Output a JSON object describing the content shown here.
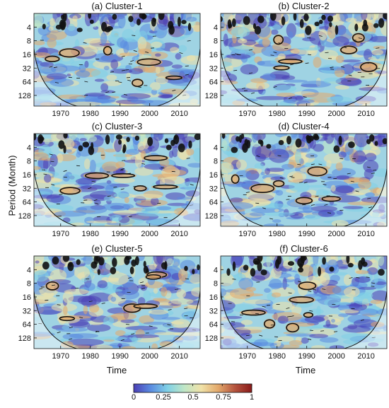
{
  "chart_data": [
    {
      "type": "heatmap",
      "title": "(a) Cluster-1",
      "ylabel": "",
      "xlabel": "",
      "x_ticks": [
        "1970",
        "1980",
        "1990",
        "2000",
        "2010"
      ],
      "y_ticks": [
        "4",
        "8",
        "16",
        "32",
        "64",
        "128"
      ],
      "x_range": [
        1961,
        2017
      ],
      "y_scale": "log2",
      "y_range": [
        2,
        220
      ]
    },
    {
      "type": "heatmap",
      "title": "(b) Cluster-2",
      "ylabel": "",
      "xlabel": "",
      "x_ticks": [
        "1970",
        "1980",
        "1990",
        "2000",
        "2010"
      ],
      "y_ticks": [
        "4",
        "8",
        "16",
        "32",
        "64",
        "128"
      ],
      "x_range": [
        1961,
        2017
      ],
      "y_scale": "log2",
      "y_range": [
        2,
        220
      ]
    },
    {
      "type": "heatmap",
      "title": "(c) Cluster-3",
      "ylabel": "Period (Month)",
      "xlabel": "",
      "x_ticks": [
        "1970",
        "1980",
        "1990",
        "2000",
        "2010"
      ],
      "y_ticks": [
        "4",
        "8",
        "16",
        "32",
        "64",
        "128"
      ],
      "x_range": [
        1961,
        2017
      ],
      "y_scale": "log2",
      "y_range": [
        2,
        220
      ]
    },
    {
      "type": "heatmap",
      "title": "(d) Cluster-4",
      "ylabel": "",
      "xlabel": "",
      "x_ticks": [
        "1970",
        "1980",
        "1990",
        "2000",
        "2010"
      ],
      "y_ticks": [
        "4",
        "8",
        "16",
        "32",
        "64",
        "128"
      ],
      "x_range": [
        1961,
        2017
      ],
      "y_scale": "log2",
      "y_range": [
        2,
        220
      ]
    },
    {
      "type": "heatmap",
      "title": "(e) Cluster-5",
      "ylabel": "",
      "xlabel": "Time",
      "x_ticks": [
        "1970",
        "1980",
        "1990",
        "2000",
        "2010"
      ],
      "y_ticks": [
        "4",
        "8",
        "16",
        "32",
        "64",
        "128"
      ],
      "x_range": [
        1961,
        2017
      ],
      "y_scale": "log2",
      "y_range": [
        2,
        220
      ]
    },
    {
      "type": "heatmap",
      "title": "(f) Cluster-6",
      "ylabel": "",
      "xlabel": "Time",
      "x_ticks": [
        "1970",
        "1980",
        "1990",
        "2000",
        "2010"
      ],
      "y_ticks": [
        "4",
        "8",
        "16",
        "32",
        "64",
        "128"
      ],
      "x_range": [
        1961,
        2017
      ],
      "y_scale": "log2",
      "y_range": [
        2,
        220
      ]
    }
  ],
  "colorbar": {
    "ticks": [
      "0",
      "0.25",
      "0.5",
      "0.75",
      "1"
    ],
    "range": [
      0,
      1
    ],
    "colors": [
      "#4b3fb6",
      "#5a8be0",
      "#7fd0e6",
      "#bfe6c6",
      "#f0e2a8",
      "#e3a96b",
      "#b5543e",
      "#8a1a1a"
    ]
  },
  "shared": {
    "ylabel": "Period (Month)",
    "xlabel": "Time"
  }
}
